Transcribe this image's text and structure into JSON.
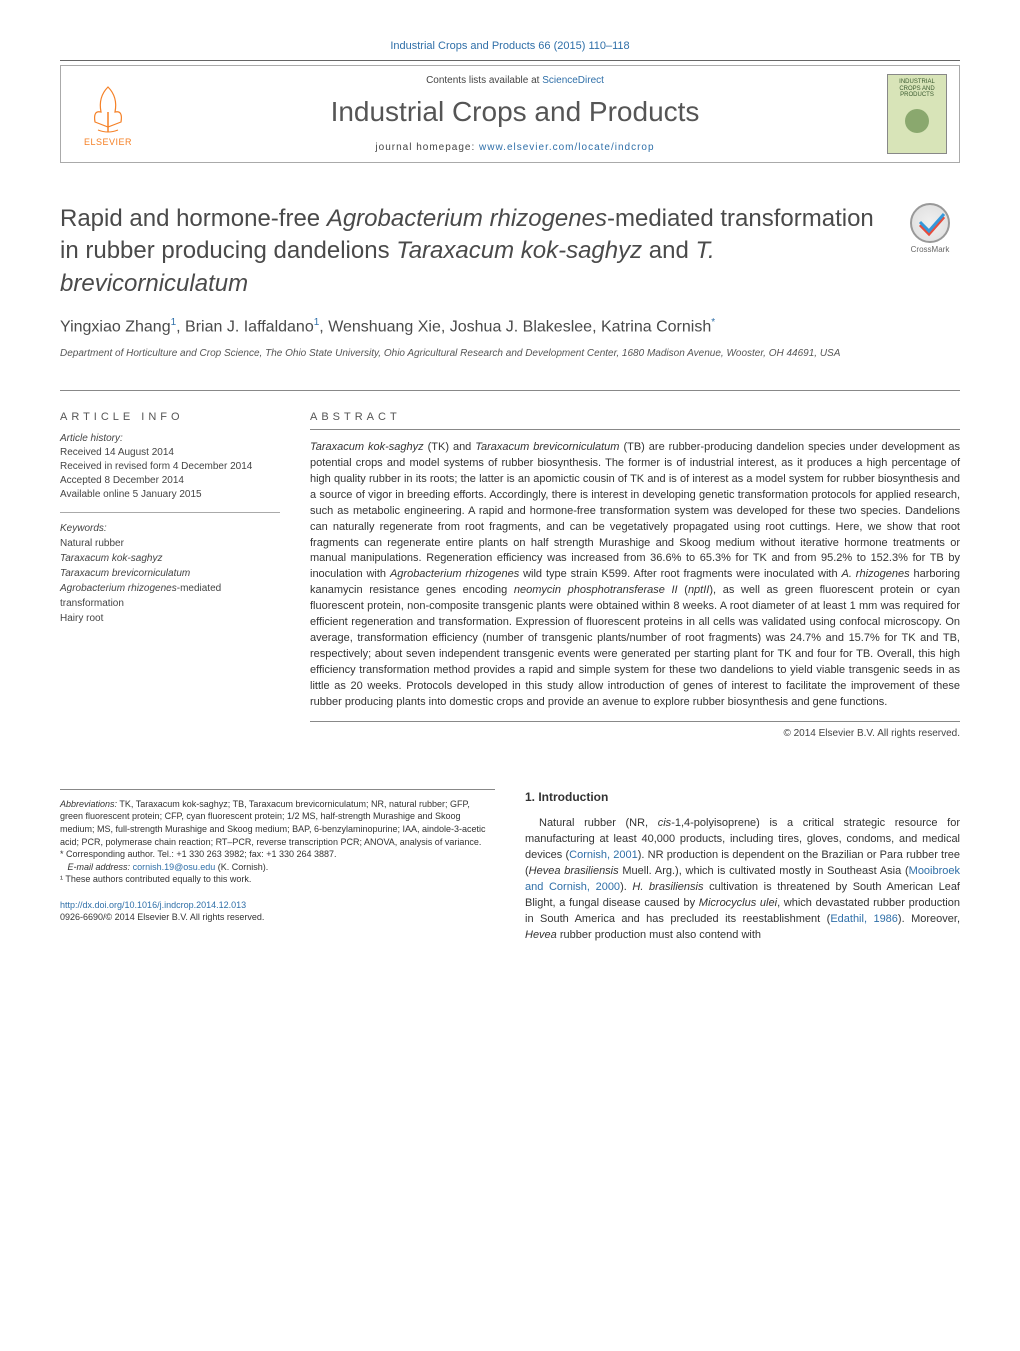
{
  "header": {
    "journal_ref": "Industrial Crops and Products 66 (2015) 110–118",
    "contents_text": "Contents lists available at ",
    "contents_link": "ScienceDirect",
    "journal_title": "Industrial Crops and Products",
    "homepage_label": "journal homepage: ",
    "homepage_url": "www.elsevier.com/locate/indcrop",
    "elsevier_label": "ELSEVIER",
    "cover_text": "INDUSTRIAL CROPS AND PRODUCTS",
    "crossmark": "CrossMark"
  },
  "title": {
    "pre": "Rapid and hormone-free ",
    "em1": "Agrobacterium rhizogenes",
    "mid1": "-mediated transformation in rubber producing dandelions ",
    "em2": "Taraxacum kok-saghyz",
    "mid2": " and ",
    "em3": "T. brevicorniculatum"
  },
  "authors": {
    "a1": "Yingxiao Zhang",
    "a2": "Brian J. Iaffaldano",
    "a3": "Wenshuang Xie",
    "a4": "Joshua J. Blakeslee",
    "a5": "Katrina Cornish",
    "sup1": "1",
    "supstar": "*"
  },
  "affiliation": "Department of Horticulture and Crop Science, The Ohio State University, Ohio Agricultural Research and Development Center, 1680 Madison Avenue, Wooster, OH 44691, USA",
  "info": {
    "heading": "ARTICLE INFO",
    "history_label": "Article history:",
    "h1": "Received 14 August 2014",
    "h2": "Received in revised form 4 December 2014",
    "h3": "Accepted 8 December 2014",
    "h4": "Available online 5 January 2015",
    "keywords_label": "Keywords:",
    "k1": "Natural rubber",
    "k2": "Taraxacum kok-saghyz",
    "k3": "Taraxacum brevicorniculatum",
    "k4a": "Agrobacterium rhizogenes",
    "k4b": "-mediated transformation",
    "k5": "Hairy root"
  },
  "abstract": {
    "heading": "ABSTRACT",
    "text_parts": [
      {
        "em": "Taraxacum kok-saghyz"
      },
      {
        "t": " (TK) and "
      },
      {
        "em": "Taraxacum brevicorniculatum"
      },
      {
        "t": " (TB) are rubber-producing dandelion species under development as potential crops and model systems of rubber biosynthesis. The former is of industrial interest, as it produces a high percentage of high quality rubber in its roots; the latter is an apomictic cousin of TK and is of interest as a model system for rubber biosynthesis and a source of vigor in breeding efforts. Accordingly, there is interest in developing genetic transformation protocols for applied research, such as metabolic engineering. A rapid and hormone-free transformation system was developed for these two species. Dandelions can naturally regenerate from root fragments, and can be vegetatively propagated using root cuttings. Here, we show that root fragments can regenerate entire plants on half strength Murashige and Skoog medium without iterative hormone treatments or manual manipulations. Regeneration efficiency was increased from 36.6% to 65.3% for TK and from 95.2% to 152.3% for TB by inoculation with "
      },
      {
        "em": "Agrobacterium rhizogenes"
      },
      {
        "t": " wild type strain K599. After root fragments were inoculated with "
      },
      {
        "em": "A. rhizogenes"
      },
      {
        "t": " harboring kanamycin resistance genes encoding "
      },
      {
        "em": "neomycin phosphotransferase II"
      },
      {
        "t": " ("
      },
      {
        "em": "nptII"
      },
      {
        "t": "), as well as green fluorescent protein or cyan fluorescent protein, non-composite transgenic plants were obtained within 8 weeks. A root diameter of at least 1 mm was required for efficient regeneration and transformation. Expression of fluorescent proteins in all cells was validated using confocal microscopy. On average, transformation efficiency (number of transgenic plants/number of root fragments) was 24.7% and 15.7% for TK and TB, respectively; about seven independent transgenic events were generated per starting plant for TK and four for TB. Overall, this high efficiency transformation method provides a rapid and simple system for these two dandelions to yield viable transgenic seeds in as little as 20 weeks. Protocols developed in this study allow introduction of genes of interest to facilitate the improvement of these rubber producing plants into domestic crops and provide an avenue to explore rubber biosynthesis and gene functions."
      }
    ],
    "copyright": "© 2014 Elsevier B.V. All rights reserved."
  },
  "footnotes": {
    "abbr_label": "Abbreviations:",
    "abbr": " TK, Taraxacum kok-saghyz; TB, Taraxacum brevicorniculatum; NR, natural rubber; GFP, green fluorescent protein; CFP, cyan fluorescent protein; 1/2 MS, half-strength Murashige and Skoog medium; MS, full-strength Murashige and Skoog medium; BAP, 6-benzylaminopurine; IAA, aindole-3-acetic acid; PCR, polymerase chain reaction; RT–PCR, reverse transcription PCR; ANOVA, analysis of variance.",
    "corr_label": "* Corresponding author. Tel.: +1 330 263 3982; fax: +1 330 264 3887.",
    "email_label": "E-mail address:",
    "email": "cornish.19@osu.edu",
    "email_suffix": " (K. Cornish).",
    "equal": "¹ These authors contributed equally to this work."
  },
  "intro": {
    "heading": "1. Introduction",
    "p1_parts": [
      {
        "t": "Natural rubber (NR, "
      },
      {
        "em": "cis"
      },
      {
        "t": "-1,4-polyisoprene) is a critical strategic resource for manufacturing at least 40,000 products, including tires, gloves, condoms, and medical devices ("
      },
      {
        "a": "Cornish, 2001"
      },
      {
        "t": "). NR production is dependent on the Brazilian or Para rubber tree ("
      },
      {
        "em": "Hevea brasiliensis"
      },
      {
        "t": " Muell. Arg.), which is cultivated mostly in Southeast Asia ("
      },
      {
        "a": "Mooibroek and Cornish, 2000"
      },
      {
        "t": "). "
      },
      {
        "em": "H. brasiliensis"
      },
      {
        "t": " cultivation is threatened by South American Leaf Blight, a fungal disease caused by "
      },
      {
        "em": "Microcyclus ulei"
      },
      {
        "t": ", which devastated rubber production in South America and has precluded its reestablishment ("
      },
      {
        "a": "Edathil, 1986"
      },
      {
        "t": "). Moreover, "
      },
      {
        "em": "Hevea"
      },
      {
        "t": " rubber production must also contend with"
      }
    ]
  },
  "doi": {
    "link": "http://dx.doi.org/10.1016/j.indcrop.2014.12.013",
    "issn": "0926-6690/© 2014 Elsevier B.V. All rights reserved."
  },
  "colors": {
    "link": "#2f6fa8",
    "orange": "#f58026",
    "text": "#333333",
    "heading_gray": "#4a4a4a"
  }
}
